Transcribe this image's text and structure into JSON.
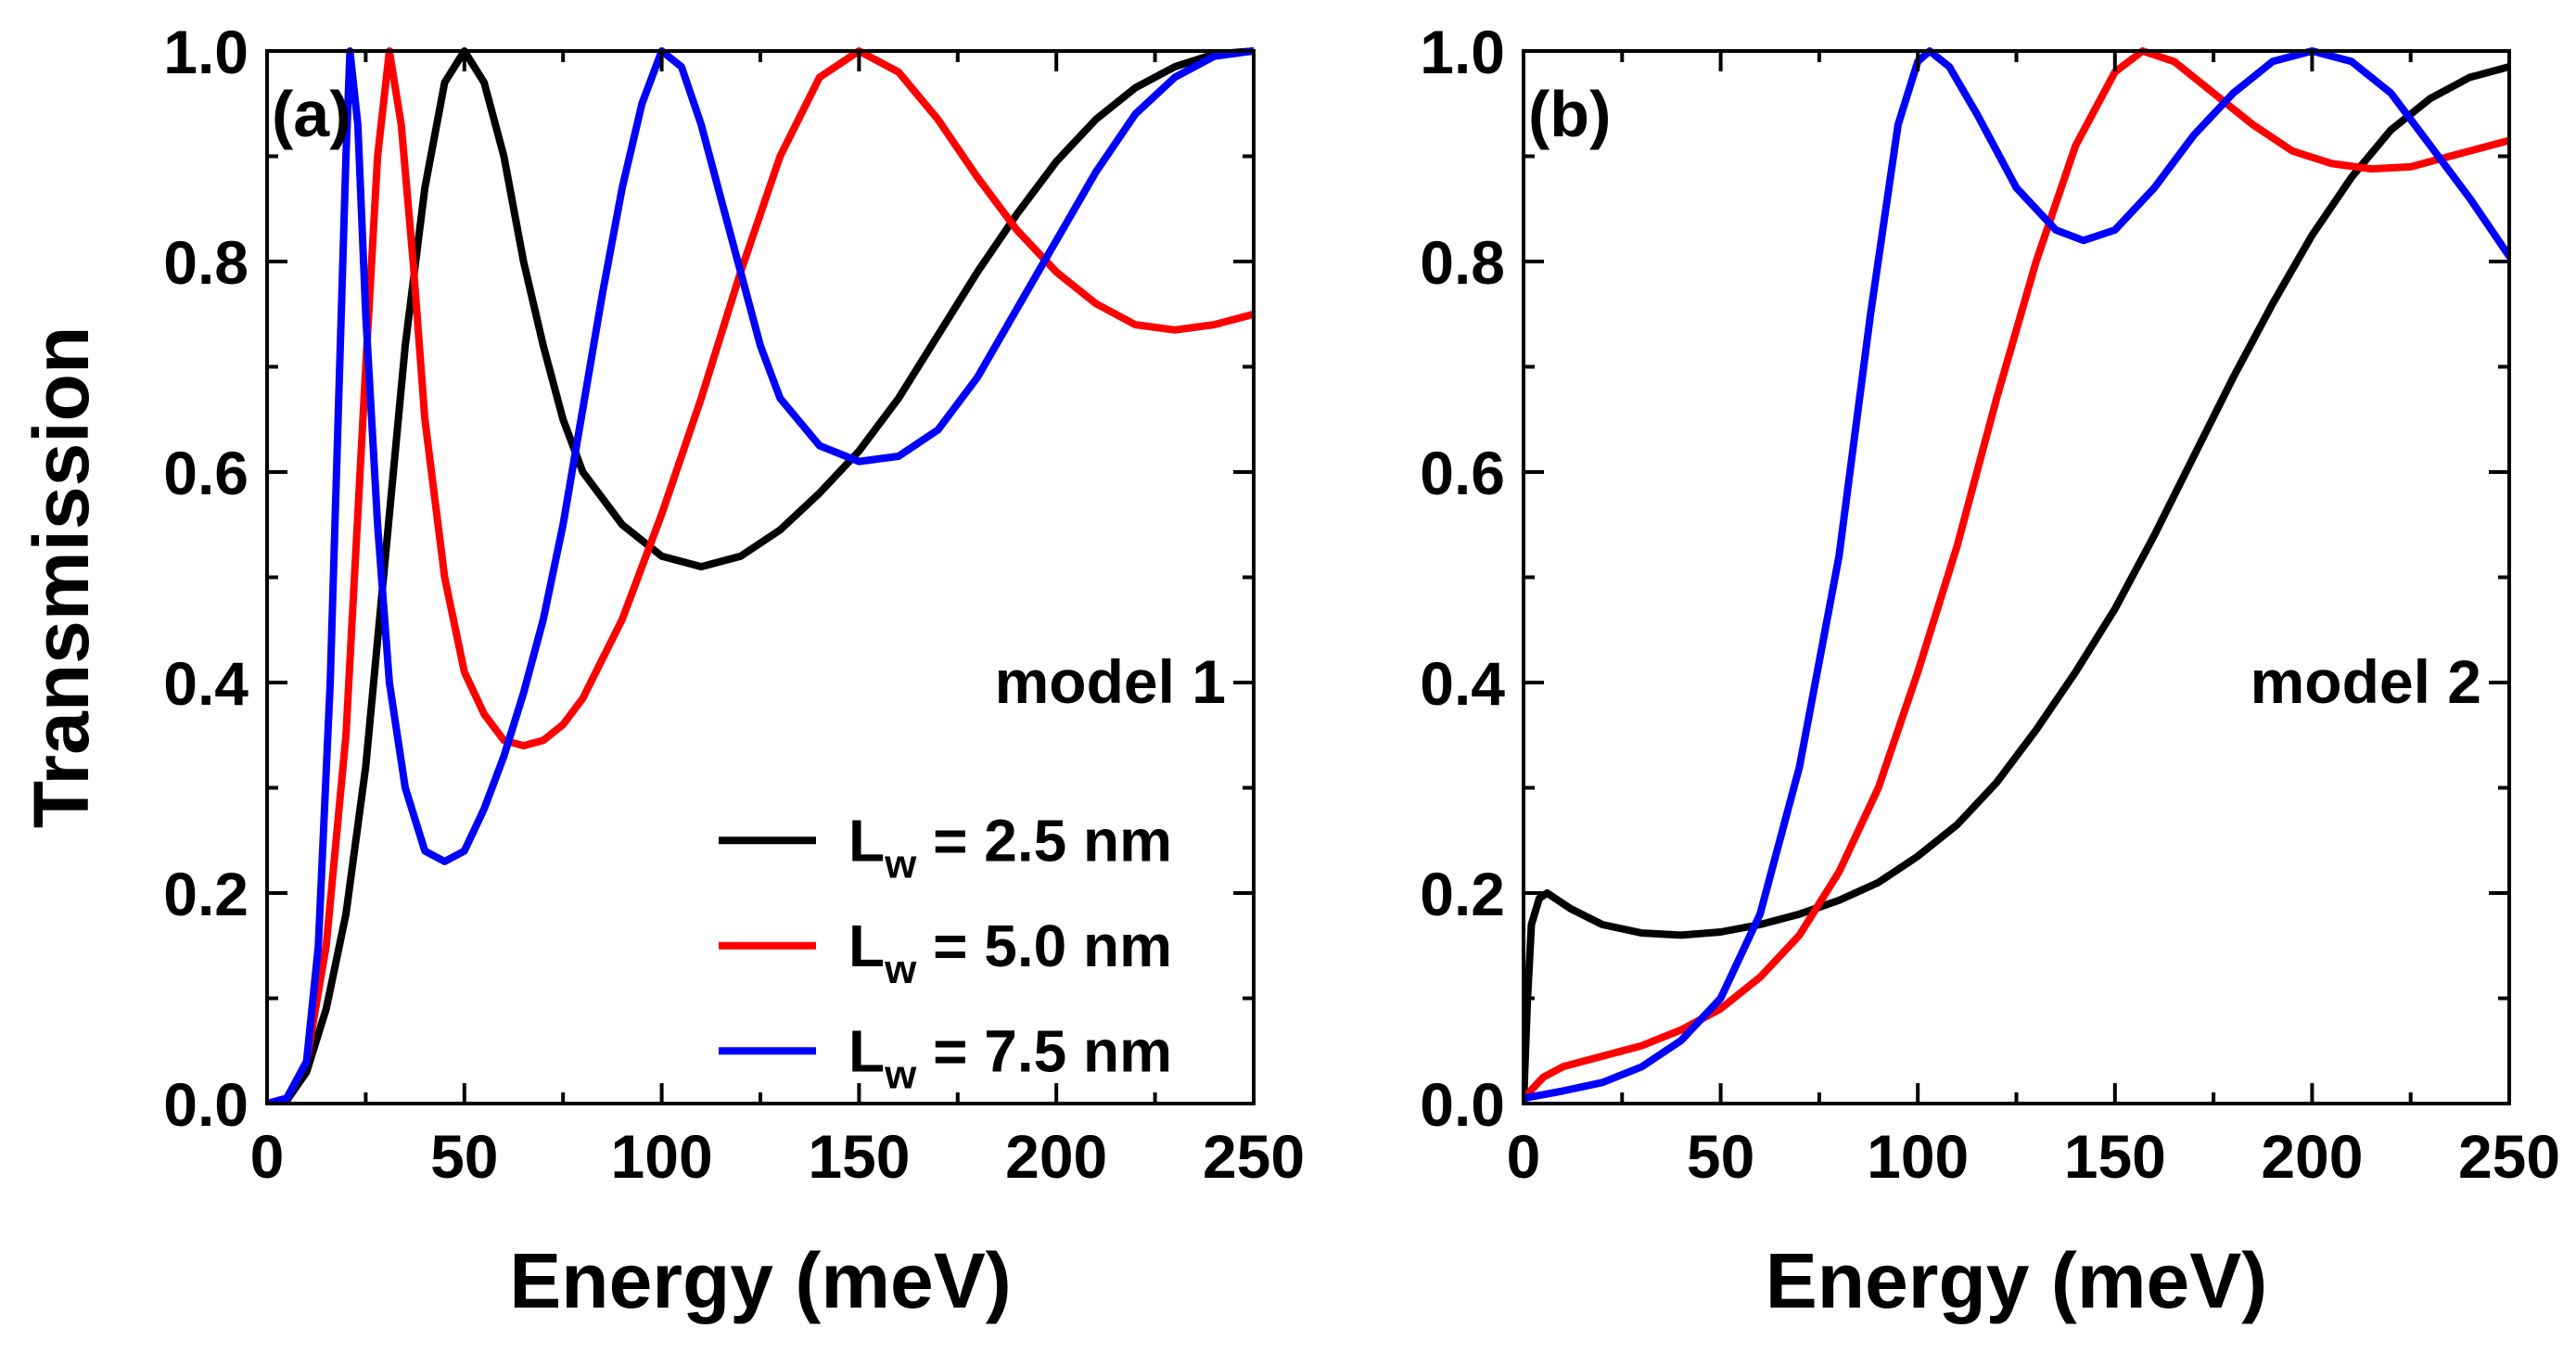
{
  "chart_data": [
    {
      "type": "line",
      "panel_label": "(a)",
      "annotation": "model 1",
      "xlabel": "Energy (meV)",
      "ylabel": "Transmission",
      "xlim": [
        0,
        250
      ],
      "ylim": [
        0,
        1.0
      ],
      "xticks": [
        0,
        50,
        100,
        150,
        200,
        250
      ],
      "xtick_labels": [
        "0",
        "50",
        "100",
        "150",
        "200",
        "250"
      ],
      "yticks": [
        0,
        0.2,
        0.4,
        0.6,
        0.8,
        1.0
      ],
      "ytick_labels": [
        "0.0",
        "0.2",
        "0.4",
        "0.6",
        "0.8",
        "1.0"
      ],
      "legend": {
        "location": "lower-right",
        "entries": [
          {
            "main": "L",
            "sub": "w",
            "rest": " = 2.5 nm",
            "color": "#000000"
          },
          {
            "main": "L",
            "sub": "w",
            "rest": " = 5.0 nm",
            "color": "#ff0000"
          },
          {
            "main": "L",
            "sub": "w",
            "rest": " = 7.5 nm",
            "color": "#0000ff"
          }
        ]
      },
      "series": [
        {
          "name": "Lw = 2.5 nm",
          "color": "#000000",
          "points": [
            [
              0,
              0
            ],
            [
              5,
              0.003
            ],
            [
              10,
              0.03
            ],
            [
              15,
              0.09
            ],
            [
              20,
              0.18
            ],
            [
              25,
              0.32
            ],
            [
              30,
              0.52
            ],
            [
              35,
              0.72
            ],
            [
              40,
              0.87
            ],
            [
              45,
              0.97
            ],
            [
              50,
              1.0
            ],
            [
              55,
              0.97
            ],
            [
              60,
              0.9
            ],
            [
              65,
              0.8
            ],
            [
              70,
              0.72
            ],
            [
              75,
              0.65
            ],
            [
              80,
              0.6
            ],
            [
              90,
              0.55
            ],
            [
              100,
              0.52
            ],
            [
              110,
              0.51
            ],
            [
              120,
              0.52
            ],
            [
              130,
              0.545
            ],
            [
              140,
              0.58
            ],
            [
              150,
              0.62
            ],
            [
              160,
              0.67
            ],
            [
              170,
              0.73
            ],
            [
              180,
              0.79
            ],
            [
              190,
              0.845
            ],
            [
              200,
              0.895
            ],
            [
              210,
              0.935
            ],
            [
              220,
              0.965
            ],
            [
              230,
              0.985
            ],
            [
              240,
              0.997
            ],
            [
              250,
              1.0
            ]
          ]
        },
        {
          "name": "Lw = 5.0 nm",
          "color": "#ff0000",
          "points": [
            [
              0,
              0
            ],
            [
              5,
              0.005
            ],
            [
              10,
              0.04
            ],
            [
              15,
              0.15
            ],
            [
              20,
              0.35
            ],
            [
              25,
              0.7
            ],
            [
              28,
              0.9
            ],
            [
              31,
              1.0
            ],
            [
              34,
              0.93
            ],
            [
              37,
              0.8
            ],
            [
              40,
              0.65
            ],
            [
              45,
              0.5
            ],
            [
              50,
              0.41
            ],
            [
              55,
              0.37
            ],
            [
              60,
              0.345
            ],
            [
              65,
              0.34
            ],
            [
              70,
              0.345
            ],
            [
              75,
              0.36
            ],
            [
              80,
              0.385
            ],
            [
              90,
              0.46
            ],
            [
              100,
              0.56
            ],
            [
              110,
              0.67
            ],
            [
              120,
              0.79
            ],
            [
              130,
              0.9
            ],
            [
              140,
              0.975
            ],
            [
              150,
              1.0
            ],
            [
              160,
              0.98
            ],
            [
              170,
              0.935
            ],
            [
              180,
              0.88
            ],
            [
              190,
              0.83
            ],
            [
              200,
              0.79
            ],
            [
              210,
              0.76
            ],
            [
              220,
              0.74
            ],
            [
              230,
              0.735
            ],
            [
              240,
              0.74
            ],
            [
              250,
              0.75
            ]
          ]
        },
        {
          "name": "Lw = 7.5 nm",
          "color": "#0000ff",
          "points": [
            [
              0,
              0
            ],
            [
              5,
              0.005
            ],
            [
              10,
              0.04
            ],
            [
              13,
              0.15
            ],
            [
              16,
              0.4
            ],
            [
              18,
              0.65
            ],
            [
              20,
              0.9
            ],
            [
              21,
              1.0
            ],
            [
              23,
              0.93
            ],
            [
              25,
              0.75
            ],
            [
              28,
              0.55
            ],
            [
              31,
              0.4
            ],
            [
              35,
              0.3
            ],
            [
              40,
              0.24
            ],
            [
              45,
              0.23
            ],
            [
              50,
              0.24
            ],
            [
              55,
              0.28
            ],
            [
              60,
              0.33
            ],
            [
              65,
              0.39
            ],
            [
              70,
              0.46
            ],
            [
              75,
              0.55
            ],
            [
              80,
              0.66
            ],
            [
              85,
              0.77
            ],
            [
              90,
              0.87
            ],
            [
              95,
              0.95
            ],
            [
              100,
              1.0
            ],
            [
              105,
              0.985
            ],
            [
              110,
              0.93
            ],
            [
              115,
              0.86
            ],
            [
              120,
              0.79
            ],
            [
              125,
              0.72
            ],
            [
              130,
              0.67
            ],
            [
              140,
              0.625
            ],
            [
              150,
              0.61
            ],
            [
              160,
              0.615
            ],
            [
              170,
              0.64
            ],
            [
              180,
              0.69
            ],
            [
              190,
              0.755
            ],
            [
              200,
              0.82
            ],
            [
              210,
              0.885
            ],
            [
              220,
              0.94
            ],
            [
              230,
              0.975
            ],
            [
              240,
              0.995
            ],
            [
              250,
              1.0
            ]
          ]
        }
      ]
    },
    {
      "type": "line",
      "panel_label": "(b)",
      "annotation": "model 2",
      "xlabel": "Energy (meV)",
      "ylabel": "",
      "xlim": [
        0,
        250
      ],
      "ylim": [
        0,
        1.0
      ],
      "xticks": [
        0,
        50,
        100,
        150,
        200,
        250
      ],
      "xtick_labels": [
        "0",
        "50",
        "100",
        "150",
        "200",
        "250"
      ],
      "yticks": [
        0,
        0.2,
        0.4,
        0.6,
        0.8,
        1.0
      ],
      "ytick_labels": [
        "0.0",
        "0.2",
        "0.4",
        "0.6",
        "0.8",
        "1.0"
      ],
      "series": [
        {
          "name": "Lw = 2.5 nm",
          "color": "#000000",
          "points": [
            [
              0,
              0
            ],
            [
              1,
              0.1
            ],
            [
              2,
              0.17
            ],
            [
              4,
              0.195
            ],
            [
              6,
              0.2
            ],
            [
              8,
              0.195
            ],
            [
              12,
              0.185
            ],
            [
              20,
              0.17
            ],
            [
              30,
              0.162
            ],
            [
              40,
              0.16
            ],
            [
              50,
              0.163
            ],
            [
              60,
              0.17
            ],
            [
              70,
              0.18
            ],
            [
              80,
              0.193
            ],
            [
              90,
              0.21
            ],
            [
              100,
              0.235
            ],
            [
              110,
              0.265
            ],
            [
              120,
              0.305
            ],
            [
              130,
              0.355
            ],
            [
              140,
              0.41
            ],
            [
              150,
              0.47
            ],
            [
              160,
              0.54
            ],
            [
              170,
              0.615
            ],
            [
              180,
              0.69
            ],
            [
              190,
              0.76
            ],
            [
              200,
              0.825
            ],
            [
              210,
              0.88
            ],
            [
              220,
              0.925
            ],
            [
              230,
              0.955
            ],
            [
              240,
              0.975
            ],
            [
              250,
              0.985
            ]
          ]
        },
        {
          "name": "Lw = 5.0 nm",
          "color": "#ff0000",
          "points": [
            [
              0,
              0.005
            ],
            [
              5,
              0.025
            ],
            [
              10,
              0.035
            ],
            [
              20,
              0.045
            ],
            [
              30,
              0.055
            ],
            [
              40,
              0.07
            ],
            [
              50,
              0.09
            ],
            [
              60,
              0.12
            ],
            [
              70,
              0.16
            ],
            [
              80,
              0.22
            ],
            [
              90,
              0.3
            ],
            [
              100,
              0.41
            ],
            [
              110,
              0.53
            ],
            [
              120,
              0.67
            ],
            [
              130,
              0.8
            ],
            [
              140,
              0.91
            ],
            [
              150,
              0.98
            ],
            [
              157,
              1.0
            ],
            [
              165,
              0.99
            ],
            [
              175,
              0.96
            ],
            [
              185,
              0.93
            ],
            [
              195,
              0.905
            ],
            [
              205,
              0.893
            ],
            [
              215,
              0.888
            ],
            [
              225,
              0.89
            ],
            [
              235,
              0.9
            ],
            [
              250,
              0.915
            ]
          ]
        },
        {
          "name": "Lw = 7.5 nm",
          "color": "#0000ff",
          "points": [
            [
              0,
              0.005
            ],
            [
              10,
              0.012
            ],
            [
              20,
              0.02
            ],
            [
              30,
              0.035
            ],
            [
              40,
              0.06
            ],
            [
              50,
              0.1
            ],
            [
              60,
              0.18
            ],
            [
              70,
              0.32
            ],
            [
              80,
              0.52
            ],
            [
              88,
              0.75
            ],
            [
              95,
              0.93
            ],
            [
              100,
              0.99
            ],
            [
              103,
              1.0
            ],
            [
              108,
              0.985
            ],
            [
              115,
              0.94
            ],
            [
              125,
              0.87
            ],
            [
              135,
              0.83
            ],
            [
              142,
              0.82
            ],
            [
              150,
              0.83
            ],
            [
              160,
              0.87
            ],
            [
              170,
              0.92
            ],
            [
              180,
              0.96
            ],
            [
              190,
              0.99
            ],
            [
              200,
              1.0
            ],
            [
              210,
              0.99
            ],
            [
              220,
              0.96
            ],
            [
              230,
              0.91
            ],
            [
              240,
              0.86
            ],
            [
              250,
              0.805
            ]
          ]
        }
      ]
    }
  ]
}
